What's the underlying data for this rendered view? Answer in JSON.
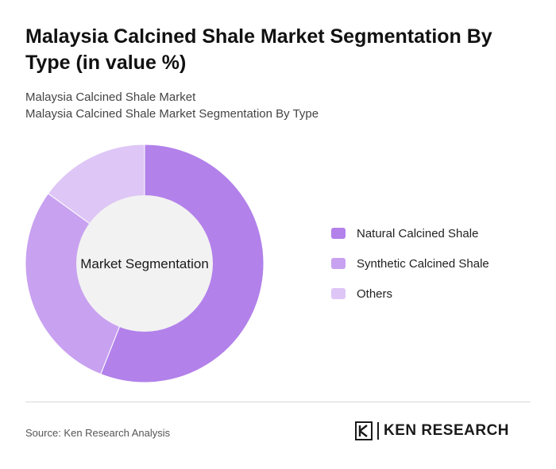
{
  "header": {
    "title": "Malaysia Calcined Shale Market Segmentation By Type (in value %)",
    "subtitle_line1": "Malaysia Calcined Shale Market",
    "subtitle_line2": "Malaysia Calcined Shale Market Segmentation By Type"
  },
  "chart_data": {
    "type": "pie",
    "variant": "donut",
    "center_label": "Market Segmentation",
    "legend_position": "right",
    "slices": [
      {
        "name": "Natural Calcined Shale",
        "value": 56,
        "color": "#b281ea"
      },
      {
        "name": "Synthetic Calcined Shale",
        "value": 29,
        "color": "#c8a1f0"
      },
      {
        "name": "Others",
        "value": 15,
        "color": "#dec6f6"
      }
    ]
  },
  "footer": {
    "source": "Source: Ken Research Analysis",
    "logo_text": "KEN RESEARCH"
  }
}
